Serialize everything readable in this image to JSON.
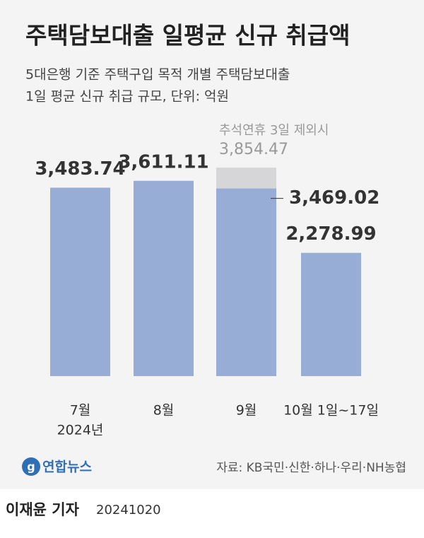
{
  "chart_data": {
    "type": "bar",
    "title": "주택담보대출 일평균 신규 취급액",
    "subtitle": [
      "5대은행 기준 주택구입 목적 개별 주택담보대출",
      "1일 평균 신규 취급 규모, 단위: 억원"
    ],
    "categories": [
      "7월",
      "8월",
      "9월",
      "10월 1일~17일"
    ],
    "category_sublabels": [
      "2024년",
      null,
      null,
      null
    ],
    "series": [
      {
        "values": [
          3483.74,
          3611.11,
          3469.02,
          2278.99
        ],
        "value_labels": [
          "3,483.74",
          "3,611.11",
          "3,469.02",
          "2,278.99"
        ],
        "color": "#98add5"
      },
      {
        "name": "추석연휴 3일 제외시",
        "values": [
          null,
          null,
          3854.47,
          null
        ],
        "value_labels": [
          null,
          null,
          "3,854.47",
          null
        ],
        "color": "#d6d6d8"
      }
    ],
    "ylim": [
      0,
      4000
    ],
    "source": "자료: KB국민·신한·하나·우리·NH농협",
    "logo": "연합뉴스"
  },
  "footer": {
    "byline": "이재윤 기자",
    "date": "20241020"
  }
}
